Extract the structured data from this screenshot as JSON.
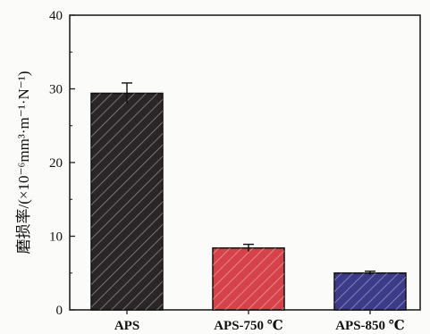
{
  "chart_data": {
    "type": "bar",
    "categories": [
      "APS",
      "APS-750 ℃",
      "APS-850 ℃"
    ],
    "values": [
      29.4,
      8.4,
      5.0
    ],
    "errors": [
      1.4,
      0.5,
      0.25
    ],
    "ylim": [
      0,
      40
    ],
    "yticks": [
      0,
      10,
      20,
      30,
      40
    ],
    "ylabel": "磨损率/(×10⁻⁶mm³·m⁻¹·N⁻¹)",
    "xlabel": "",
    "title": "",
    "grid": false,
    "legend": "none",
    "bar_colors": [
      "#2a2526",
      "#d6424a",
      "#3c3b8a"
    ],
    "hatch": "diagonal"
  }
}
